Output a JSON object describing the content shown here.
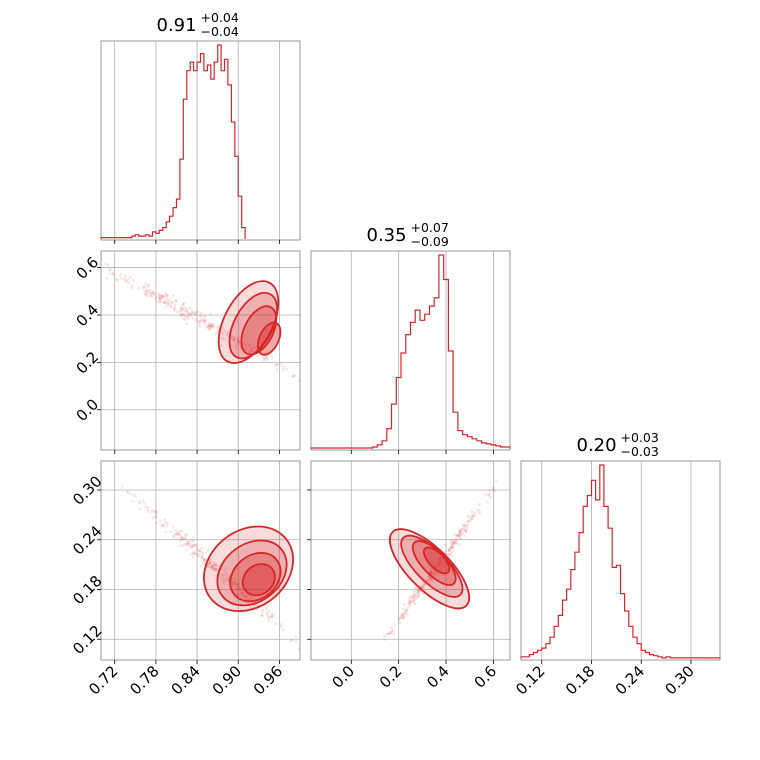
{
  "chart_data": {
    "type": "corner",
    "color": "#d62728",
    "grid": true,
    "parameters": [
      {
        "median": "0.91",
        "plus": "+0.04",
        "minus": "−0.04",
        "range": [
          0.7,
          0.99
        ],
        "ticks": [
          {
            "v": 0.72,
            "label": "0.72"
          },
          {
            "v": 0.78,
            "label": "0.78"
          },
          {
            "v": 0.84,
            "label": "0.84"
          },
          {
            "v": 0.9,
            "label": "0.90"
          },
          {
            "v": 0.96,
            "label": "0.96"
          }
        ],
        "hist": {
          "bin_start": 0.7,
          "bin_width": 0.005,
          "counts": [
            1,
            1,
            1,
            1,
            1,
            1,
            1,
            1,
            1,
            2,
            3,
            2,
            2,
            3,
            2,
            5,
            4,
            6,
            8,
            12,
            16,
            22,
            28,
            56,
            98,
            118,
            124,
            118,
            124,
            130,
            118,
            122,
            112,
            124,
            136,
            118,
            126,
            108,
            82,
            58,
            30,
            8
          ]
        }
      },
      {
        "median": "0.35",
        "plus": "+0.07",
        "minus": "−0.09",
        "range": [
          -0.17,
          0.67
        ],
        "ticks": [
          {
            "v": 0.0,
            "label": "0.0"
          },
          {
            "v": 0.2,
            "label": "0.2"
          },
          {
            "v": 0.4,
            "label": "0.4"
          },
          {
            "v": 0.6,
            "label": "0.6"
          }
        ],
        "hist": {
          "bin_start": -0.17,
          "bin_width": 0.02,
          "counts": [
            1,
            1,
            1,
            1,
            1,
            1,
            1,
            1,
            1,
            1,
            1,
            1,
            1,
            2,
            4,
            8,
            20,
            44,
            70,
            94,
            112,
            124,
            136,
            126,
            132,
            140,
            148,
            190,
            166,
            96,
            36,
            18,
            14,
            12,
            10,
            8,
            6,
            5,
            4,
            3,
            2,
            2
          ]
        }
      },
      {
        "median": "0.20",
        "plus": "+0.03",
        "minus": "−0.03",
        "range": [
          0.095,
          0.335
        ],
        "ticks": [
          {
            "v": 0.12,
            "label": "0.12"
          },
          {
            "v": 0.18,
            "label": "0.18"
          },
          {
            "v": 0.24,
            "label": "0.24"
          },
          {
            "v": 0.3,
            "label": "0.30"
          }
        ],
        "hist": {
          "bin_start": 0.095,
          "bin_width": 0.005,
          "counts": [
            2,
            2,
            4,
            6,
            8,
            10,
            14,
            20,
            30,
            40,
            54,
            64,
            82,
            98,
            116,
            140,
            150,
            164,
            146,
            178,
            140,
            120,
            84,
            86,
            60,
            44,
            30,
            20,
            14,
            8,
            6,
            4,
            3,
            2,
            1,
            2,
            1,
            1,
            1,
            1,
            1,
            1,
            1,
            1,
            1,
            1,
            1,
            1
          ]
        }
      }
    ],
    "pairs": [
      {
        "x": 0,
        "y": 1,
        "trend": {
          "kind": "quadratic",
          "x0": 0.7,
          "y0": 0.6,
          "x1": 0.99,
          "y1": 0.13,
          "curv": 0.1
        },
        "contours": [
          {
            "cx": 0.915,
            "cy": 0.37,
            "a": 0.065,
            "b": 0.01,
            "angle": -62
          },
          {
            "cx": 0.922,
            "cy": 0.355,
            "a": 0.052,
            "b": 0.008,
            "angle": -62
          },
          {
            "cx": 0.93,
            "cy": 0.335,
            "a": 0.038,
            "b": 0.006,
            "angle": -63
          },
          {
            "cx": 0.945,
            "cy": 0.3,
            "a": 0.025,
            "b": 0.004,
            "angle": -65
          }
        ]
      },
      {
        "x": 0,
        "y": 2,
        "trend": {
          "kind": "linear",
          "x0": 0.73,
          "y0": 0.305,
          "x1": 0.99,
          "y1": 0.115,
          "curv": 0.0
        },
        "contours": [
          {
            "cx": 0.915,
            "cy": 0.205,
            "a": 0.07,
            "b": 0.016,
            "angle": -38
          },
          {
            "cx": 0.92,
            "cy": 0.2,
            "a": 0.055,
            "b": 0.012,
            "angle": -38
          },
          {
            "cx": 0.925,
            "cy": 0.195,
            "a": 0.04,
            "b": 0.009,
            "angle": -40
          },
          {
            "cx": 0.93,
            "cy": 0.192,
            "a": 0.025,
            "b": 0.006,
            "angle": -40
          }
        ]
      },
      {
        "x": 1,
        "y": 2,
        "trend": {
          "kind": "linear",
          "x0": 0.12,
          "y0": 0.11,
          "x1": 0.62,
          "y1": 0.31,
          "curv": 0.0
        },
        "contours": [
          {
            "cx": 0.33,
            "cy": 0.205,
            "a": 0.22,
            "b": 0.025,
            "angle": 45
          },
          {
            "cx": 0.34,
            "cy": 0.208,
            "a": 0.17,
            "b": 0.019,
            "angle": 45
          },
          {
            "cx": 0.35,
            "cy": 0.212,
            "a": 0.12,
            "b": 0.014,
            "angle": 46
          },
          {
            "cx": 0.36,
            "cy": 0.215,
            "a": 0.07,
            "b": 0.009,
            "angle": 46
          }
        ]
      }
    ]
  }
}
